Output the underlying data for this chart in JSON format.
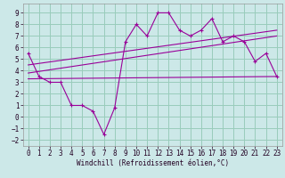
{
  "xlabel": "Windchill (Refroidissement éolien,°C)",
  "background_color": "#cce8e8",
  "grid_color": "#99ccbb",
  "line_color": "#990099",
  "xlim": [
    -0.5,
    23.5
  ],
  "ylim": [
    -2.5,
    9.8
  ],
  "xticks": [
    0,
    1,
    2,
    3,
    4,
    5,
    6,
    7,
    8,
    9,
    10,
    11,
    12,
    13,
    14,
    15,
    16,
    17,
    18,
    19,
    20,
    21,
    22,
    23
  ],
  "yticks": [
    -2,
    -1,
    0,
    1,
    2,
    3,
    4,
    5,
    6,
    7,
    8,
    9
  ],
  "main_data_x": [
    0,
    1,
    2,
    3,
    4,
    5,
    6,
    7,
    8,
    9,
    10,
    11,
    12,
    13,
    14,
    15,
    16,
    17,
    18,
    19,
    20,
    21,
    22,
    23
  ],
  "main_data_y": [
    5.5,
    3.5,
    3.0,
    3.0,
    1.0,
    1.0,
    0.5,
    -1.5,
    0.8,
    6.5,
    8.0,
    7.0,
    9.0,
    9.0,
    7.5,
    7.0,
    7.5,
    8.5,
    6.5,
    7.0,
    6.5,
    4.8,
    5.5,
    3.5
  ],
  "trend1_x": [
    0,
    23
  ],
  "trend1_y": [
    3.8,
    7.0
  ],
  "trend2_x": [
    0,
    23
  ],
  "trend2_y": [
    4.5,
    7.5
  ],
  "flat_line_x": [
    0,
    23
  ],
  "flat_line_y": [
    3.3,
    3.5
  ],
  "tick_fontsize": 5.5,
  "xlabel_fontsize": 5.5
}
